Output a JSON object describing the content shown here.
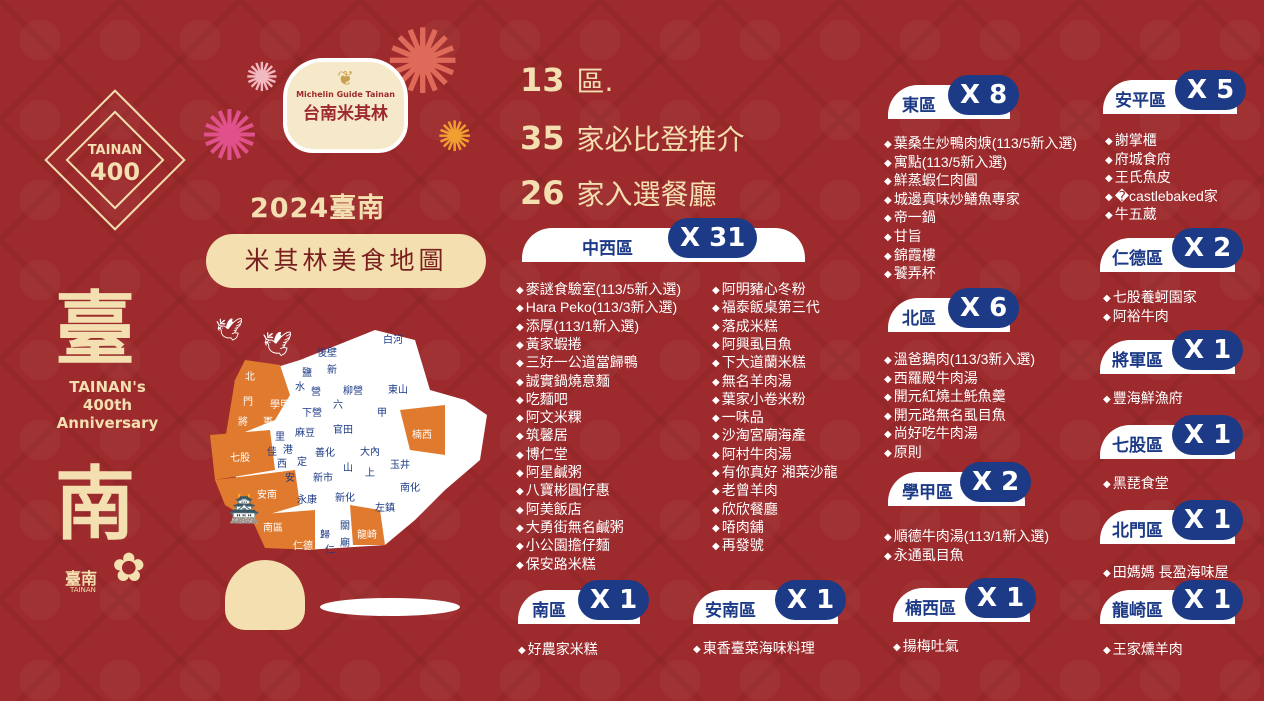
{
  "branding": {
    "tainan400_top": "TAINAN",
    "tainan400_num": "400",
    "char_top": "臺",
    "char_bottom": "南",
    "anniversary": [
      "TAINAN's",
      "400th",
      "Anniversary"
    ],
    "logo_en": "Michelin Guide Tainan",
    "logo_zh": "台南米其林",
    "city_logo": "臺南",
    "city_logo_en": "TAINAN"
  },
  "title": {
    "year": "2024臺南",
    "subtitle": "米其林美食地圖"
  },
  "stats": [
    {
      "num": "13",
      "text": "區."
    },
    {
      "num": "35",
      "text": "家必比登推介"
    },
    {
      "num": "26",
      "text": "家入選餐廳"
    }
  ],
  "colors": {
    "background": "#9d2a2c",
    "cream": "#f3dfb0",
    "navy": "#1c3a86",
    "orange": "#e07a2e"
  },
  "map_labels": [
    "白河",
    "後壁",
    "鹽",
    "新",
    "水",
    "營",
    "柳營",
    "東山",
    "六",
    "甲",
    "下營",
    "官田",
    "麻豆",
    "楠西",
    "佳",
    "里",
    "港",
    "西",
    "善化",
    "大內",
    "玉井",
    "定",
    "安",
    "山",
    "上",
    "新市",
    "南化",
    "七股",
    "北",
    "門",
    "學甲",
    "將",
    "軍",
    "安南",
    "永康",
    "新化",
    "左鎮",
    "南區",
    "仁德",
    "歸",
    "仁",
    "關",
    "廟",
    "龍崎"
  ],
  "districts": [
    {
      "name": "中西區",
      "count": "X 31",
      "items": [
        "麥謎食驗室(113/5新入選)",
        "Hara Peko(113/3新入選)",
        "添厚(113/1新入選)",
        "黃家蝦捲",
        "三好一公道當歸鴨",
        "誠實鍋燒意麵",
        "吃麵吧",
        "阿文米粿",
        "筑馨居",
        "博仁堂",
        "阿星鹹粥",
        "八寶彬圓仔惠",
        "阿美飯店",
        "大勇街無名鹹粥",
        "小公園擔仔麵",
        "保安路米糕",
        "阿明豬心冬粉",
        "福泰飯桌第三代",
        "落成米糕",
        "阿興虱目魚",
        "下大道蘭米糕",
        "無名羊肉湯",
        "葉家小卷米粉",
        "一味品",
        "沙淘宮廟海產",
        "阿村牛肉湯",
        "有你真好 湘菜沙龍",
        "老曾羊肉",
        "欣欣餐廳",
        "㖔肉舖",
        "再發號"
      ]
    },
    {
      "name": "南區",
      "count": "X 1",
      "items": [
        "好農家米糕"
      ]
    },
    {
      "name": "安南區",
      "count": "X 1",
      "items": [
        "東香臺菜海味料理"
      ]
    },
    {
      "name": "東區",
      "count": "X 8",
      "items": [
        "葉桑生炒鴨肉焿(113/5新入選)",
        "寓點(113/5新入選)",
        "鮮蒸蝦仁肉圓",
        "城邊真味炒鱔魚專家",
        "帝一鍋",
        "甘旨",
        "錦霞樓",
        "饕弄杯"
      ]
    },
    {
      "name": "北區",
      "count": "X 6",
      "items": [
        "溫爸鵝肉(113/3新入選)",
        "西羅殿牛肉湯",
        "開元紅燒土魠魚羹",
        "開元路無名虱目魚",
        "尚好吃牛肉湯",
        "原則"
      ]
    },
    {
      "name": "學甲區",
      "count": "X 2",
      "items": [
        "順德牛肉湯(113/1新入選)",
        "永通虱目魚"
      ]
    },
    {
      "name": "楠西區",
      "count": "X 1",
      "items": [
        "揚梅吐氣"
      ]
    },
    {
      "name": "安平區",
      "count": "X 5",
      "items": [
        "謝掌櫃",
        "府城食府",
        "王氏魚皮",
        "�castlebaked家",
        "牛五葳"
      ]
    },
    {
      "name": "仁德區",
      "count": "X 2",
      "items": [
        "七股養蚵園家",
        "阿裕牛肉"
      ]
    },
    {
      "name": "將軍區",
      "count": "X 1",
      "items": [
        "豐海鮮漁府"
      ]
    },
    {
      "name": "七股區",
      "count": "X 1",
      "items": [
        "黑琵食堂"
      ]
    },
    {
      "name": "北門區",
      "count": "X 1",
      "items": [
        "田媽媽 長盈海味屋"
      ]
    },
    {
      "name": "龍崎區",
      "count": "X 1",
      "items": [
        "王家燻羊肉"
      ]
    }
  ]
}
